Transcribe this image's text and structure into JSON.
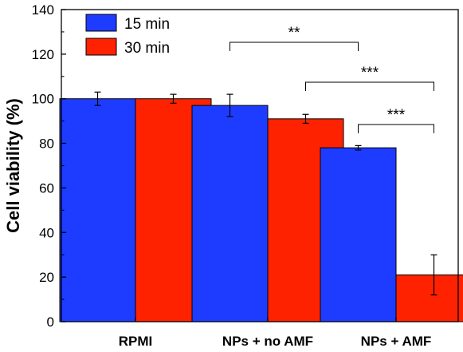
{
  "chart_data": {
    "type": "bar",
    "categories": [
      "RPMI",
      "NPs + no AMF",
      "NPs + AMF"
    ],
    "series": [
      {
        "name": "15 min",
        "values": [
          100,
          97,
          78
        ],
        "errors": [
          3,
          5,
          1
        ],
        "color": "#1e3cff"
      },
      {
        "name": "30 min",
        "values": [
          100,
          91,
          21
        ],
        "errors": [
          2,
          2,
          9
        ],
        "color": "#ff2200"
      }
    ],
    "ylabel": "Cell viability (%)",
    "xlabel": "",
    "title": "",
    "ylim": [
      0,
      140
    ],
    "yticks": [
      0,
      20,
      40,
      60,
      80,
      100,
      120,
      140
    ],
    "legend_position": "top-left",
    "grid": false,
    "significance": [
      {
        "label": "**",
        "from": "NPs + no AMF / 15 min",
        "to": "NPs + AMF / 15 min"
      },
      {
        "label": "***",
        "from": "NPs + no AMF / 30 min",
        "to": "NPs + AMF / 30 min"
      },
      {
        "label": "***",
        "from": "NPs + AMF / 15 min",
        "to": "NPs + AMF / 30 min"
      }
    ]
  }
}
